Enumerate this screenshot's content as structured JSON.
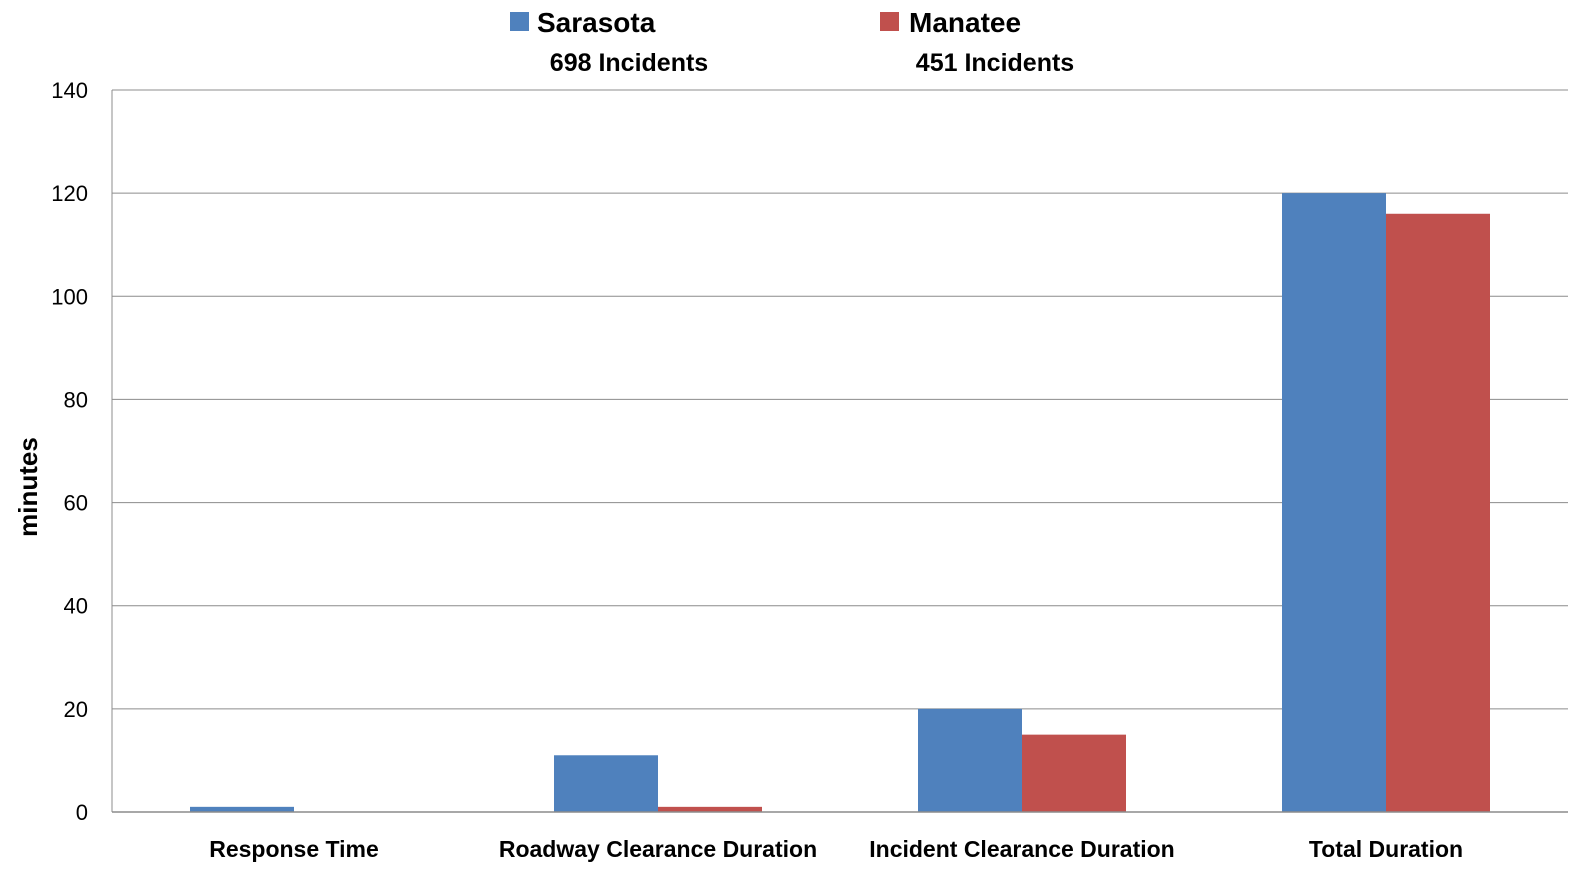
{
  "chart_data": {
    "type": "bar",
    "categories": [
      "Response Time",
      "Roadway Clearance Duration",
      "Incident Clearance Duration",
      "Total Duration"
    ],
    "series": [
      {
        "name": "Sarasota",
        "note": "698 Incidents",
        "color": "#4f81bd",
        "values": [
          1,
          11,
          20,
          120
        ]
      },
      {
        "name": "Manatee",
        "note": "451 Incidents",
        "color": "#c0504d",
        "values": [
          0,
          1,
          15,
          116
        ]
      }
    ],
    "ylabel": "minutes",
    "ylim": [
      0,
      140
    ],
    "yticks": [
      0,
      20,
      40,
      60,
      80,
      100,
      120,
      140
    ],
    "grid": true,
    "legend": "top"
  }
}
